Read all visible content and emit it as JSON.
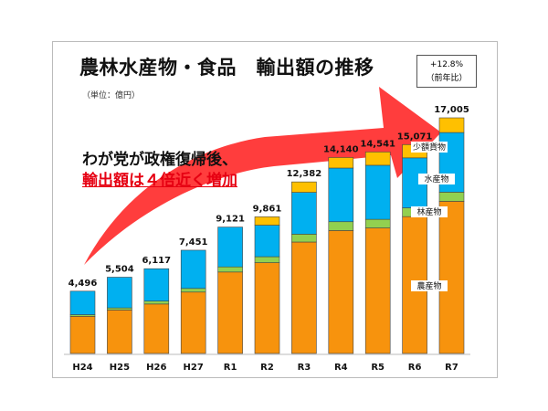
{
  "title": "農林水産物・食品　輸出額の推移",
  "unit": "（単位：億円）",
  "message_line1": "わが党が政権復帰後、",
  "message_line2": "輸出額は４倍近く増加",
  "callout": {
    "line1": "+12.8%",
    "line2": "（前年比）"
  },
  "colors": {
    "agri": "#f7930d",
    "forest": "#92d050",
    "fish": "#00b0f0",
    "small": "#ffc000",
    "arrow": "#ff3333"
  },
  "chart_data": {
    "type": "bar",
    "stacked": true,
    "categories": [
      "H24",
      "H25",
      "H26",
      "H27",
      "R1",
      "R2",
      "R3",
      "R4",
      "R5",
      "R6",
      "R7"
    ],
    "totals": [
      "4,496",
      "5,504",
      "6,117",
      "7,451",
      "9,121",
      "9,861",
      "12,382",
      "14,140",
      "14,541",
      "15,071",
      "17,005"
    ],
    "series": [
      {
        "name": "農産物",
        "values": [
          2680,
          3136,
          3569,
          4431,
          5878,
          6552,
          8041,
          8870,
          9059,
          9875,
          10979
        ]
      },
      {
        "name": "林産物",
        "values": [
          118,
          152,
          211,
          263,
          370,
          429,
          570,
          638,
          621,
          631,
          661
        ]
      },
      {
        "name": "水産物",
        "values": [
          1698,
          2216,
          2337,
          2757,
          2873,
          2276,
          3015,
          3873,
          3901,
          3609,
          4304
        ]
      },
      {
        "name": "少額貨物",
        "values": [
          0,
          0,
          0,
          0,
          0,
          604,
          756,
          759,
          960,
          956,
          1061
        ]
      }
    ],
    "ylim": [
      0,
      17005
    ],
    "grid": false,
    "legend": "inline labels on last bars"
  }
}
